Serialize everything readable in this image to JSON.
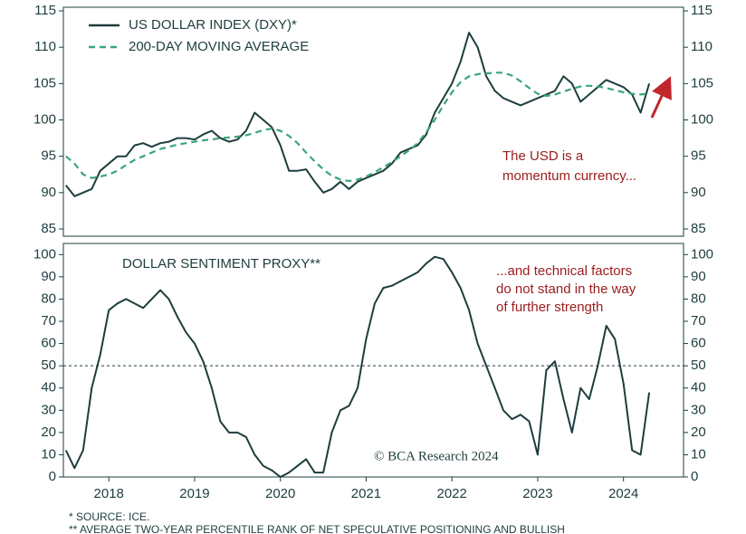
{
  "chart_data": [
    {
      "type": "line",
      "xlim": [
        2017.97,
        2025.2
      ],
      "ylim": [
        84,
        115.5
      ],
      "yticks": [
        85,
        90,
        95,
        100,
        105,
        110,
        115
      ],
      "x": [
        2018.0,
        2018.1,
        2018.2,
        2018.3,
        2018.4,
        2018.5,
        2018.6,
        2018.7,
        2018.8,
        2018.9,
        2019.0,
        2019.1,
        2019.2,
        2019.3,
        2019.4,
        2019.5,
        2019.6,
        2019.7,
        2019.8,
        2019.9,
        2020.0,
        2020.1,
        2020.2,
        2020.3,
        2020.4,
        2020.5,
        2020.6,
        2020.7,
        2020.8,
        2020.9,
        2021.0,
        2021.1,
        2021.2,
        2021.3,
        2021.4,
        2021.5,
        2021.6,
        2021.7,
        2021.8,
        2021.9,
        2022.0,
        2022.1,
        2022.2,
        2022.3,
        2022.4,
        2022.5,
        2022.6,
        2022.7,
        2022.8,
        2022.9,
        2023.0,
        2023.1,
        2023.2,
        2023.3,
        2023.4,
        2023.5,
        2023.6,
        2023.7,
        2023.8,
        2023.9,
        2024.0,
        2024.1,
        2024.2,
        2024.3,
        2024.4,
        2024.5,
        2024.6,
        2024.7,
        2024.8
      ],
      "series": [
        {
          "name": "US DOLLAR INDEX (DXY)*",
          "color": "#1e3d3e",
          "line_style": "solid",
          "values": [
            91,
            89.5,
            90,
            90.5,
            93,
            94,
            95,
            95,
            96.5,
            96.8,
            96.3,
            96.8,
            97,
            97.5,
            97.5,
            97.3,
            98,
            98.5,
            97.5,
            97,
            97.3,
            98.5,
            101,
            100,
            99,
            96.5,
            93,
            93,
            93.2,
            91.5,
            90,
            90.5,
            91.5,
            90.5,
            91.5,
            92,
            92.5,
            93,
            94,
            95.5,
            96,
            96.5,
            98,
            101,
            103,
            105,
            108,
            112,
            110,
            106,
            104,
            103,
            102.5,
            102,
            102.5,
            103,
            103.5,
            104,
            106,
            105,
            102.5,
            103.5,
            104.5,
            105.5,
            105,
            104.5,
            103.5,
            101,
            105
          ]
        },
        {
          "name": "200-DAY MOVING AVERAGE",
          "color": "#3aa57b",
          "line_style": "dashed",
          "values": [
            95,
            94,
            92.5,
            92,
            92.2,
            92.5,
            93,
            93.8,
            94.5,
            95,
            95.5,
            96,
            96.3,
            96.6,
            96.8,
            97,
            97.2,
            97.3,
            97.5,
            97.6,
            97.7,
            97.9,
            98.2,
            98.6,
            98.8,
            98.5,
            97.8,
            96.8,
            95.5,
            94.3,
            93.2,
            92.3,
            91.8,
            91.6,
            91.8,
            92.2,
            92.8,
            93.5,
            94.2,
            95,
            95.8,
            96.8,
            98.3,
            100,
            102,
            103.8,
            105.2,
            106,
            106.3,
            106.4,
            106.5,
            106.5,
            106.1,
            105.3,
            104.4,
            103.6,
            103.3,
            103.5,
            103.9,
            104.3,
            104.6,
            104.7,
            104.6,
            104.4,
            104.1,
            103.8,
            103.6,
            103.5,
            103.6
          ]
        }
      ],
      "annotation": [
        "The USD is a",
        "momentum currency..."
      ]
    },
    {
      "type": "line",
      "title": "DOLLAR SENTIMENT PROXY**",
      "xlim": [
        2017.97,
        2025.2
      ],
      "xticks": [
        {
          "value": 2018.5,
          "label": "2018"
        },
        {
          "value": 2019.5,
          "label": "2019"
        },
        {
          "value": 2020.5,
          "label": "2020"
        },
        {
          "value": 2021.5,
          "label": "2021"
        },
        {
          "value": 2022.5,
          "label": "2022"
        },
        {
          "value": 2023.5,
          "label": "2023"
        },
        {
          "value": 2024.5,
          "label": "2024"
        }
      ],
      "ylim": [
        0,
        105
      ],
      "yticks": [
        0,
        10,
        20,
        30,
        40,
        50,
        60,
        70,
        80,
        90,
        100
      ],
      "hline": 50,
      "x": [
        2018.0,
        2018.1,
        2018.2,
        2018.3,
        2018.4,
        2018.5,
        2018.6,
        2018.7,
        2018.8,
        2018.9,
        2019.0,
        2019.1,
        2019.2,
        2019.3,
        2019.4,
        2019.5,
        2019.6,
        2019.7,
        2019.8,
        2019.9,
        2020.0,
        2020.1,
        2020.2,
        2020.3,
        2020.4,
        2020.5,
        2020.6,
        2020.7,
        2020.8,
        2020.9,
        2021.0,
        2021.1,
        2021.2,
        2021.3,
        2021.4,
        2021.5,
        2021.6,
        2021.7,
        2021.8,
        2021.9,
        2022.0,
        2022.1,
        2022.2,
        2022.3,
        2022.4,
        2022.5,
        2022.6,
        2022.7,
        2022.8,
        2022.9,
        2023.0,
        2023.1,
        2023.2,
        2023.3,
        2023.4,
        2023.5,
        2023.6,
        2023.7,
        2023.8,
        2023.9,
        2024.0,
        2024.1,
        2024.2,
        2024.3,
        2024.4,
        2024.5,
        2024.6,
        2024.7,
        2024.8
      ],
      "series": [
        {
          "color": "#1e3d3e",
          "line_style": "solid",
          "values": [
            12,
            4,
            12,
            40,
            55,
            75,
            78,
            80,
            78,
            76,
            80,
            84,
            80,
            72,
            65,
            60,
            52,
            40,
            25,
            20,
            20,
            18,
            10,
            5,
            3,
            0,
            2,
            5,
            8,
            2,
            2,
            20,
            30,
            32,
            40,
            62,
            78,
            85,
            86,
            88,
            90,
            92,
            96,
            99,
            98,
            92,
            85,
            75,
            60,
            50,
            40,
            30,
            26,
            28,
            25,
            10,
            48,
            52,
            35,
            20,
            40,
            35,
            50,
            68,
            62,
            42,
            12,
            10,
            38
          ]
        }
      ],
      "annotation": [
        "...and technical factors",
        "do not stand in the way",
        "of further strength"
      ],
      "watermark": "© BCA Research 2024"
    }
  ],
  "footnotes": [
    "* SOURCE: ICE.",
    "** AVERAGE TWO-YEAR PERCENTILE RANK OF NET SPECULATIVE POSITIONING AND BULLISH"
  ]
}
